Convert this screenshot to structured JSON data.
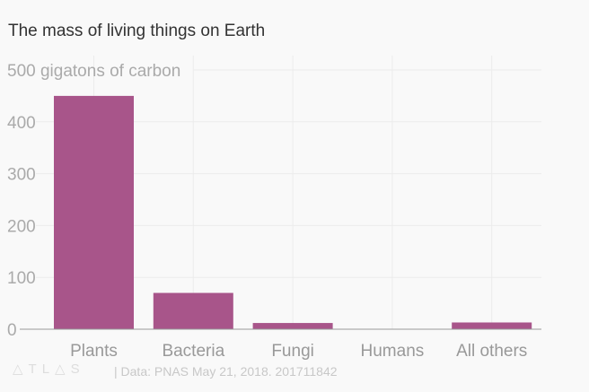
{
  "chart_data": {
    "type": "bar",
    "title": "The mass of living things on Earth",
    "ylabel": "gigatons of carbon",
    "top_tick_label": "500 gigatons of carbon",
    "categories": [
      "Plants",
      "Bacteria",
      "Fungi",
      "Humans",
      "All others"
    ],
    "values": [
      450,
      70,
      12,
      0.06,
      13
    ],
    "ylim": [
      0,
      500
    ],
    "yticks": [
      0,
      100,
      200,
      300,
      400,
      500
    ],
    "grid": true,
    "bar_color": "#a8558a"
  },
  "footer": {
    "logo": "ATLAS",
    "source": "| Data: PNAS May 21, 2018. 201711842"
  }
}
